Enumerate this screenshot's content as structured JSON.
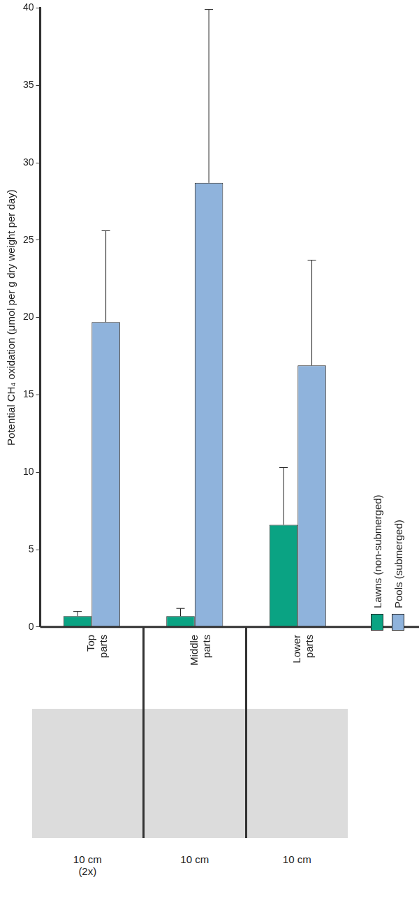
{
  "chart_data": {
    "type": "bar",
    "y_label": "Potential CH₄ oxidation (μmol per g dry weight per day)",
    "categories": [
      "Top parts",
      "Middle parts",
      "Lower parts"
    ],
    "series": [
      {
        "name": "Lawns (non-submerged)",
        "color": "#0aa383",
        "values": [
          0.7,
          0.7,
          6.6
        ],
        "errors": [
          0.3,
          0.5,
          3.7
        ]
      },
      {
        "name": "Pools (submerged)",
        "color": "#8fb3dc",
        "values": [
          19.7,
          28.7,
          16.9
        ],
        "errors": [
          5.9,
          11.2,
          6.8
        ]
      }
    ],
    "ylim": [
      0,
      40
    ],
    "yticks": [
      0,
      5,
      10,
      15,
      20,
      25,
      30,
      35,
      40
    ],
    "grid": false,
    "legend": "right",
    "annotations": [
      "10 cm\n(2x)",
      "10 cm",
      "10 cm"
    ]
  }
}
